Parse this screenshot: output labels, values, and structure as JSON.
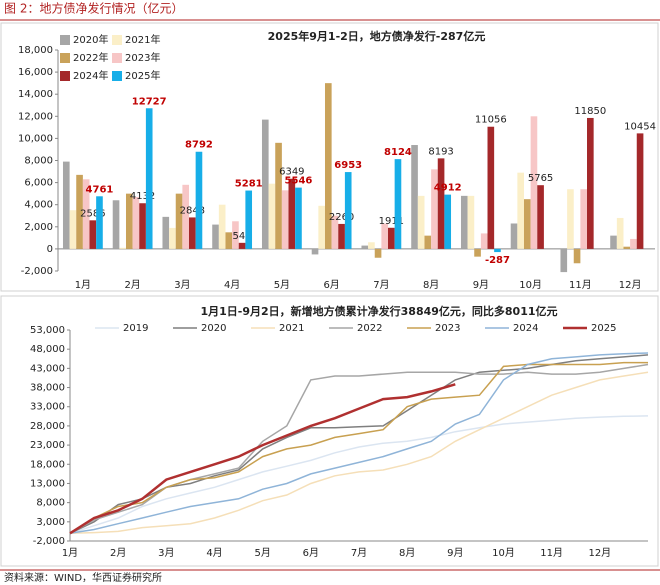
{
  "header": {
    "title": "图 2：地方债净发行情况（亿元）"
  },
  "chart_data": [
    {
      "type": "bar",
      "title": "2025年9月1-2日，地方债净发行-287亿元",
      "categories": [
        "1月",
        "2月",
        "3月",
        "4月",
        "5月",
        "6月",
        "7月",
        "8月",
        "9月",
        "10月",
        "11月",
        "12月"
      ],
      "series": [
        {
          "name": "2020年",
          "color": "#a6a6a6",
          "values": [
            7900,
            4400,
            2900,
            2200,
            11700,
            -500,
            300,
            9400,
            4800,
            2300,
            -2100,
            1200
          ]
        },
        {
          "name": "2021年",
          "color": "#fbefc8",
          "values": [
            3500,
            100,
            1900,
            4000,
            5900,
            3900,
            600,
            4800,
            4800,
            6900,
            5400,
            2800
          ]
        },
        {
          "name": "2022年",
          "color": "#c9a25a",
          "values": [
            6700,
            5000,
            5000,
            1500,
            9600,
            15000,
            -800,
            1200,
            -700,
            4500,
            -1300,
            200
          ]
        },
        {
          "name": "2023年",
          "color": "#f7c6c6",
          "values": [
            6300,
            4700,
            5800,
            2500,
            5300,
            3000,
            2300,
            7200,
            1400,
            12000,
            5400,
            900
          ]
        },
        {
          "name": "2024年",
          "color": "#a4282a",
          "values": [
            2586,
            4132,
            2848,
            549,
            6349,
            2260,
            1911,
            8193,
            11056,
            5765,
            11850,
            10454
          ],
          "data_labels": true,
          "label_color": "#222222"
        },
        {
          "name": "2025年",
          "color": "#17aee8",
          "values": [
            4761,
            12727,
            8792,
            5281,
            5546,
            6953,
            8124,
            4912,
            -287,
            null,
            null,
            null
          ],
          "data_labels": true,
          "label_color": "#c00000"
        }
      ],
      "ylim": [
        -2000,
        18000
      ],
      "yticks": [
        {
          "value": -2000,
          "label": "-2,000"
        },
        0,
        {
          "value": 2000,
          "label": "2,000"
        },
        {
          "value": 4000,
          "label": "4,000"
        },
        {
          "value": 6000,
          "label": "6,000"
        },
        {
          "value": 8000,
          "label": "8,000"
        },
        {
          "value": 10000,
          "label": "10,000"
        },
        {
          "value": 12000,
          "label": "12,000"
        },
        {
          "value": 14000,
          "label": "14,000"
        },
        {
          "value": 16000,
          "label": "16,000"
        },
        {
          "value": 18000,
          "label": "18,000"
        }
      ],
      "grid": false,
      "legend": "upper left"
    },
    {
      "type": "line",
      "title": "1月1日-9月2日，新增地方债累计净发行38849亿元，同比多8011亿元",
      "categories": [
        "1月",
        null,
        "2月",
        null,
        "3月",
        null,
        "4月",
        null,
        "5月",
        null,
        "6月",
        null,
        "7月",
        null,
        "8月",
        null,
        "9月",
        null,
        "10月",
        null,
        "11月",
        null,
        "12月",
        null,
        null
      ],
      "series": [
        {
          "name": "2019",
          "color": "#dbe5f1",
          "values": [
            0,
            2000,
            4000,
            7000,
            9000,
            10500,
            12000,
            14000,
            16000,
            17500,
            19000,
            21000,
            22500,
            23500,
            24000,
            25000,
            26500,
            27500,
            28500,
            29000,
            29500,
            30000,
            30300,
            30500,
            30600
          ]
        },
        {
          "name": "2020",
          "color": "#7f7f7f",
          "values": [
            0,
            3000,
            7500,
            9000,
            12000,
            13000,
            15000,
            16500,
            22000,
            25000,
            27500,
            27500,
            27800,
            28000,
            32000,
            36000,
            40000,
            42000,
            42500,
            43000,
            44000,
            45000,
            45500,
            46000,
            46500
          ]
        },
        {
          "name": "2021",
          "color": "#f5dfb8",
          "values": [
            0,
            200,
            500,
            1500,
            2000,
            2500,
            4000,
            6000,
            8500,
            10000,
            13000,
            15000,
            16000,
            16500,
            18000,
            20000,
            24000,
            27000,
            30000,
            33000,
            36000,
            38000,
            40000,
            41000,
            42000
          ]
        },
        {
          "name": "2022",
          "color": "#a6a6a6",
          "values": [
            0,
            3500,
            5500,
            7500,
            12000,
            14000,
            15500,
            17000,
            24000,
            28000,
            40000,
            41000,
            41000,
            41500,
            42000,
            42000,
            42000,
            41500,
            41500,
            42000,
            41500,
            41500,
            42000,
            43000,
            44000
          ]
        },
        {
          "name": "2023",
          "color": "#c8a050",
          "values": [
            0,
            4000,
            7000,
            8000,
            12000,
            14000,
            14500,
            16000,
            20000,
            22000,
            23000,
            25000,
            26000,
            27000,
            33000,
            35000,
            35500,
            36000,
            43500,
            44000,
            44000,
            44000,
            44000,
            44500,
            44500
          ]
        },
        {
          "name": "2024",
          "color": "#8fb4d8",
          "values": [
            0,
            1000,
            2500,
            4000,
            5500,
            7000,
            8000,
            9000,
            11500,
            13000,
            15500,
            17000,
            18500,
            20000,
            22000,
            24000,
            28500,
            31000,
            40000,
            44000,
            45500,
            46000,
            46500,
            46800,
            47000
          ]
        },
        {
          "name": "2025",
          "color": "#b03030",
          "values": [
            0,
            4000,
            6000,
            9000,
            14000,
            16000,
            18000,
            20000,
            23000,
            25500,
            28000,
            30000,
            32500,
            35000,
            35500,
            37000,
            38849,
            null,
            null,
            null,
            null,
            null,
            null,
            null,
            null
          ]
        }
      ],
      "ylim": [
        -2000,
        53000
      ],
      "yticks": [
        {
          "value": -2000,
          "label": "-2,000"
        },
        {
          "value": 3000,
          "label": "3,000"
        },
        {
          "value": 8000,
          "label": "8,000"
        },
        {
          "value": 13000,
          "label": "13,000"
        },
        {
          "value": 18000,
          "label": "18,000"
        },
        {
          "value": 23000,
          "label": "23,000"
        },
        {
          "value": 28000,
          "label": "28,000"
        },
        {
          "value": 33000,
          "label": "33,000"
        },
        {
          "value": 38000,
          "label": "38,000"
        },
        {
          "value": 43000,
          "label": "43,000"
        },
        {
          "value": 48000,
          "label": "48,000"
        },
        {
          "value": 53000,
          "label": "53,000"
        }
      ],
      "grid": false,
      "legend": "upper center"
    }
  ],
  "footer": {
    "source": "资料来源：WIND，华西证券研究所"
  }
}
